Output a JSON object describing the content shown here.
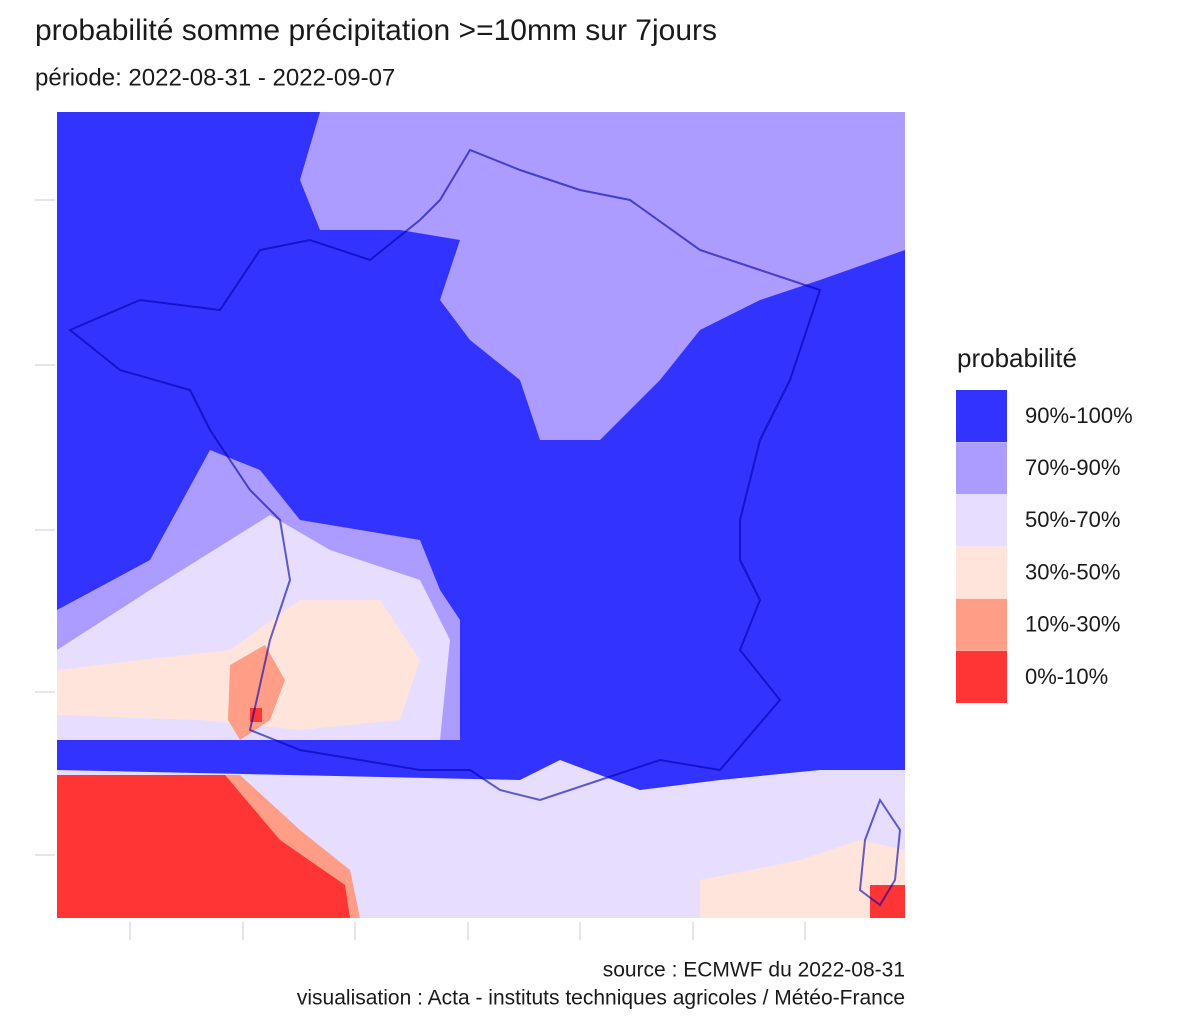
{
  "header": {
    "title": "probabilité somme précipitation >=10mm sur 7jours",
    "subtitle": "période: 2022-08-31 - 2022-09-07"
  },
  "legend": {
    "title": "probabilité",
    "items": [
      {
        "label": "90%-100%",
        "color": "#3333ff"
      },
      {
        "label": "70%-90%",
        "color": "#ad9cff"
      },
      {
        "label": "50%-70%",
        "color": "#e6ddff"
      },
      {
        "label": "30%-50%",
        "color": "#ffe4dc"
      },
      {
        "label": "10%-30%",
        "color": "#ff9d86"
      },
      {
        "label": "0%-10%",
        "color": "#ff3535"
      }
    ]
  },
  "caption": {
    "source": "source : ECMWF du 2022-08-31",
    "credit": "visualisation : Acta - instituts techniques agricoles / Météo-France"
  }
}
